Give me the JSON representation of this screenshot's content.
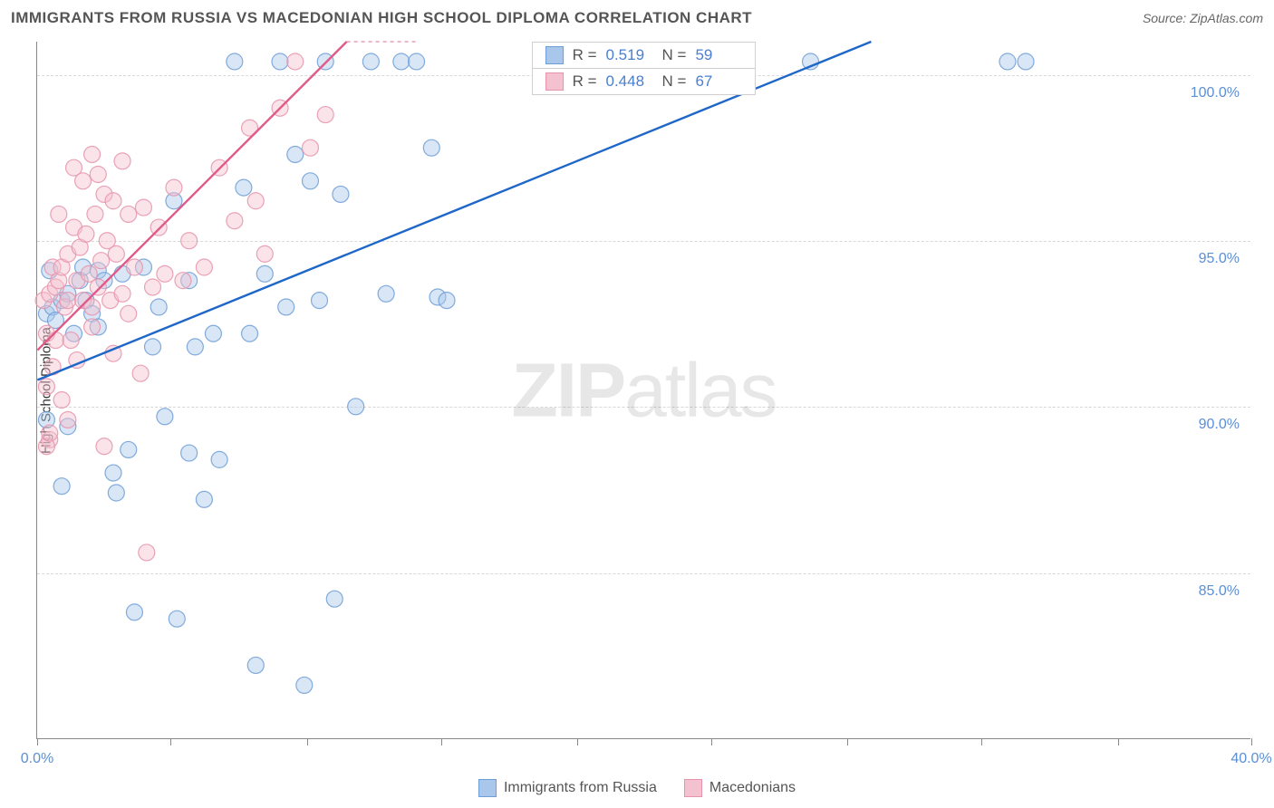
{
  "title": "IMMIGRANTS FROM RUSSIA VS MACEDONIAN HIGH SCHOOL DIPLOMA CORRELATION CHART",
  "source_prefix": "Source: ",
  "source_name": "ZipAtlas.com",
  "ylabel": "High School Diploma",
  "watermark_zip": "ZIP",
  "watermark_atlas": "atlas",
  "chart": {
    "type": "scatter",
    "xlim": [
      0,
      40
    ],
    "ylim": [
      80,
      101
    ],
    "y_ticks": [
      85.0,
      90.0,
      95.0,
      100.0
    ],
    "y_tick_labels": [
      "85.0%",
      "90.0%",
      "95.0%",
      "100.0%"
    ],
    "x_ticks": [
      0,
      4.4,
      8.9,
      13.3,
      17.8,
      22.2,
      26.7,
      31.1,
      35.6,
      40
    ],
    "x_tick_labels_shown": {
      "0": "0.0%",
      "40": "40.0%"
    },
    "background_color": "#ffffff",
    "grid_color": "#d8d8d8",
    "axis_color": "#888888",
    "tick_label_color": "#5b8fd6",
    "marker_radius": 9,
    "marker_opacity": 0.45,
    "marker_stroke_opacity": 0.85,
    "line_width": 2.4,
    "series": [
      {
        "name": "Immigrants from Russia",
        "color_fill": "#a9c7ea",
        "color_stroke": "#6d9ed6",
        "line_color": "#1e66c7",
        "R": "0.519",
        "N": "59",
        "trend": {
          "x1": 0,
          "y1": 90.8,
          "x2": 27.5,
          "y2": 101
        },
        "points": [
          [
            0.3,
            92.8
          ],
          [
            0.3,
            89.6
          ],
          [
            0.4,
            94.1
          ],
          [
            0.5,
            93.0
          ],
          [
            0.6,
            92.6
          ],
          [
            0.8,
            93.2
          ],
          [
            0.8,
            87.6
          ],
          [
            1.0,
            93.4
          ],
          [
            1.0,
            89.4
          ],
          [
            1.2,
            92.2
          ],
          [
            1.4,
            93.8
          ],
          [
            1.5,
            94.2
          ],
          [
            1.6,
            93.2
          ],
          [
            1.8,
            92.8
          ],
          [
            2.0,
            94.1
          ],
          [
            2.0,
            92.4
          ],
          [
            2.2,
            93.8
          ],
          [
            2.5,
            88.0
          ],
          [
            2.6,
            87.4
          ],
          [
            2.8,
            94.0
          ],
          [
            3.0,
            88.7
          ],
          [
            3.2,
            83.8
          ],
          [
            3.5,
            94.2
          ],
          [
            3.8,
            91.8
          ],
          [
            4.0,
            93.0
          ],
          [
            4.2,
            89.7
          ],
          [
            4.5,
            96.2
          ],
          [
            4.6,
            83.6
          ],
          [
            5.0,
            93.8
          ],
          [
            5.0,
            88.6
          ],
          [
            5.2,
            91.8
          ],
          [
            5.5,
            87.2
          ],
          [
            5.8,
            92.2
          ],
          [
            6.0,
            88.4
          ],
          [
            6.5,
            100.4
          ],
          [
            6.8,
            96.6
          ],
          [
            7.0,
            92.2
          ],
          [
            7.2,
            82.2
          ],
          [
            7.5,
            94.0
          ],
          [
            8.0,
            100.4
          ],
          [
            8.2,
            93.0
          ],
          [
            8.5,
            97.6
          ],
          [
            8.8,
            81.6
          ],
          [
            9.0,
            96.8
          ],
          [
            9.3,
            93.2
          ],
          [
            9.8,
            84.2
          ],
          [
            10.0,
            96.4
          ],
          [
            10.5,
            90.0
          ],
          [
            11.0,
            100.4
          ],
          [
            11.5,
            93.4
          ],
          [
            12.0,
            100.4
          ],
          [
            12.5,
            100.4
          ],
          [
            13.0,
            97.8
          ],
          [
            13.2,
            93.3
          ],
          [
            13.5,
            93.2
          ],
          [
            25.5,
            100.4
          ],
          [
            32.0,
            100.4
          ],
          [
            32.6,
            100.4
          ],
          [
            9.5,
            100.4
          ]
        ]
      },
      {
        "name": "Macedonians",
        "color_fill": "#f3c1cf",
        "color_stroke": "#e693ac",
        "line_color": "#e05a8a",
        "R": "0.448",
        "N": "67",
        "trend": {
          "x1": 0,
          "y1": 91.7,
          "x2": 10.2,
          "y2": 101
        },
        "trend_dashed_ext": {
          "x1": 10.2,
          "y1": 101,
          "x2": 12.5,
          "y2": 101
        },
        "points": [
          [
            0.2,
            93.2
          ],
          [
            0.3,
            92.2
          ],
          [
            0.3,
            90.6
          ],
          [
            0.4,
            93.4
          ],
          [
            0.4,
            89.0
          ],
          [
            0.5,
            94.2
          ],
          [
            0.5,
            91.2
          ],
          [
            0.6,
            93.6
          ],
          [
            0.6,
            92.0
          ],
          [
            0.7,
            95.8
          ],
          [
            0.7,
            93.8
          ],
          [
            0.8,
            94.2
          ],
          [
            0.8,
            90.2
          ],
          [
            0.9,
            93.0
          ],
          [
            1.0,
            94.6
          ],
          [
            1.0,
            93.2
          ],
          [
            1.1,
            92.0
          ],
          [
            1.2,
            97.2
          ],
          [
            1.2,
            95.4
          ],
          [
            1.3,
            93.8
          ],
          [
            1.3,
            91.4
          ],
          [
            1.4,
            94.8
          ],
          [
            1.5,
            96.8
          ],
          [
            1.5,
            93.2
          ],
          [
            1.6,
            95.2
          ],
          [
            1.7,
            94.0
          ],
          [
            1.8,
            97.6
          ],
          [
            1.8,
            92.4
          ],
          [
            1.9,
            95.8
          ],
          [
            2.0,
            97.0
          ],
          [
            2.0,
            93.6
          ],
          [
            2.1,
            94.4
          ],
          [
            2.2,
            96.4
          ],
          [
            2.2,
            88.8
          ],
          [
            2.3,
            95.0
          ],
          [
            2.4,
            93.2
          ],
          [
            2.5,
            96.2
          ],
          [
            2.5,
            91.6
          ],
          [
            2.6,
            94.6
          ],
          [
            2.8,
            97.4
          ],
          [
            2.8,
            93.4
          ],
          [
            3.0,
            95.8
          ],
          [
            3.0,
            92.8
          ],
          [
            3.2,
            94.2
          ],
          [
            3.4,
            91.0
          ],
          [
            3.5,
            96.0
          ],
          [
            3.6,
            85.6
          ],
          [
            3.8,
            93.6
          ],
          [
            4.0,
            95.4
          ],
          [
            4.2,
            94.0
          ],
          [
            4.5,
            96.6
          ],
          [
            4.8,
            93.8
          ],
          [
            5.0,
            95.0
          ],
          [
            5.5,
            94.2
          ],
          [
            6.0,
            97.2
          ],
          [
            6.5,
            95.6
          ],
          [
            7.0,
            98.4
          ],
          [
            7.2,
            96.2
          ],
          [
            7.5,
            94.6
          ],
          [
            8.0,
            99.0
          ],
          [
            8.5,
            100.4
          ],
          [
            9.0,
            97.8
          ],
          [
            9.5,
            98.8
          ],
          [
            0.3,
            88.8
          ],
          [
            0.4,
            89.2
          ],
          [
            1.0,
            89.6
          ],
          [
            1.8,
            93.0
          ]
        ]
      }
    ]
  },
  "stats_legend": {
    "r_label": "R =",
    "n_label": "N ="
  },
  "bottom_legend": {
    "items": [
      "Immigrants from Russia",
      "Macedonians"
    ]
  }
}
